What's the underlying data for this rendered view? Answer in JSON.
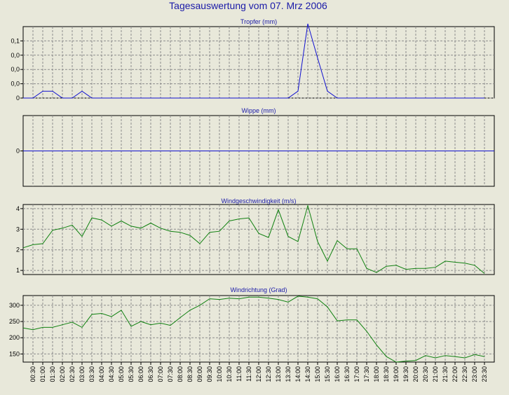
{
  "title": "Tagesauswertung vom 07. Mrz 2006",
  "colors": {
    "background": "#e8e8da",
    "title": "#1a1aa8",
    "rain": "#1010d0",
    "wind": "#108010",
    "grid": "#8c8c8c"
  },
  "x_ticks": [
    "00:30",
    "01:00",
    "01:30",
    "02:00",
    "02:30",
    "03:00",
    "03:30",
    "04:00",
    "04:30",
    "05:00",
    "05:30",
    "06:00",
    "06:30",
    "07:00",
    "07:30",
    "08:00",
    "08:30",
    "09:00",
    "09:30",
    "10:00",
    "10:30",
    "11:00",
    "11:30",
    "12:00",
    "12:30",
    "13:00",
    "13:30",
    "14:00",
    "14:30",
    "15:00",
    "15:30",
    "16:00",
    "16:30",
    "17:00",
    "17:30",
    "18:00",
    "18:30",
    "19:00",
    "19:30",
    "20:00",
    "20:30",
    "21:00",
    "21:30",
    "22:00",
    "22:30",
    "23:00",
    "23:30"
  ],
  "chart_data": [
    {
      "type": "line",
      "title": "Tropfer (mm)",
      "color": "#1010d0",
      "ylim": [
        0,
        0.125
      ],
      "ytick_values": [
        0,
        0.025,
        0.05,
        0.075,
        0.1
      ],
      "ytick_labels": [
        "0",
        "0,0",
        "0,0",
        "0,0",
        "0,1"
      ],
      "x": [
        0,
        0.5,
        1,
        1.5,
        2,
        2.5,
        3,
        3.5,
        4,
        4.5,
        5,
        5.5,
        6,
        6.5,
        7,
        7.5,
        8,
        8.5,
        9,
        9.5,
        10,
        10.5,
        11,
        11.5,
        12,
        12.5,
        13,
        13.5,
        14,
        14.5,
        15,
        15.5,
        16,
        16.5,
        17,
        17.5,
        18,
        18.5,
        19,
        19.5,
        20,
        20.5,
        21,
        21.5,
        22,
        22.5,
        23,
        23.5
      ],
      "y": [
        0,
        0,
        0.012,
        0.012,
        0,
        0,
        0.012,
        0,
        0,
        0,
        0,
        0,
        0,
        0,
        0,
        0,
        0,
        0,
        0,
        0,
        0,
        0,
        0,
        0,
        0,
        0,
        0,
        0,
        0.012,
        0.13,
        0.07,
        0.012,
        0,
        0,
        0,
        0,
        0,
        0,
        0,
        0,
        0,
        0,
        0,
        0,
        0,
        0,
        0,
        0
      ]
    },
    {
      "type": "line",
      "title": "Wippe (mm)",
      "color": "#1010d0",
      "ylim": [
        -1,
        1
      ],
      "ytick_values": [
        0
      ],
      "ytick_labels": [
        "0"
      ],
      "x": [
        0,
        24
      ],
      "y": [
        0,
        0
      ]
    },
    {
      "type": "line",
      "title": "Windgeschwindigkeit (m/s)",
      "color": "#108010",
      "ylim": [
        0.8,
        4.2
      ],
      "ytick_values": [
        1,
        2,
        3,
        4
      ],
      "ytick_labels": [
        "1",
        "2",
        "3",
        "4"
      ],
      "x": [
        0,
        0.5,
        1,
        1.5,
        2,
        2.5,
        3,
        3.5,
        4,
        4.5,
        5,
        5.5,
        6,
        6.5,
        7,
        7.5,
        8,
        8.5,
        9,
        9.5,
        10,
        10.5,
        11,
        11.5,
        12,
        12.5,
        13,
        13.5,
        14,
        14.5,
        15,
        15.5,
        16,
        16.5,
        17,
        17.5,
        18,
        18.5,
        19,
        19.5,
        20,
        20.5,
        21,
        21.5,
        22,
        22.5,
        23,
        23.5
      ],
      "y": [
        2.1,
        2.25,
        2.3,
        2.95,
        3.05,
        3.2,
        2.65,
        3.55,
        3.45,
        3.15,
        3.4,
        3.15,
        3.05,
        3.3,
        3.05,
        2.9,
        2.85,
        2.7,
        2.3,
        2.85,
        2.9,
        3.4,
        3.5,
        3.55,
        2.8,
        2.6,
        3.95,
        2.65,
        2.4,
        4.15,
        2.4,
        1.45,
        2.45,
        2.05,
        2.05,
        1.1,
        0.9,
        1.2,
        1.25,
        1.05,
        1.1,
        1.1,
        1.15,
        1.45,
        1.4,
        1.35,
        1.25,
        0.85
      ]
    },
    {
      "type": "line",
      "title": "Windrichtung (Grad)",
      "color": "#108010",
      "ylim": [
        125,
        330
      ],
      "ytick_values": [
        150,
        200,
        250,
        300
      ],
      "ytick_labels": [
        "150",
        "200",
        "250",
        "300"
      ],
      "x": [
        0,
        0.5,
        1,
        1.5,
        2,
        2.5,
        3,
        3.5,
        4,
        4.5,
        5,
        5.5,
        6,
        6.5,
        7,
        7.5,
        8,
        8.5,
        9,
        9.5,
        10,
        10.5,
        11,
        11.5,
        12,
        12.5,
        13,
        13.5,
        14,
        14.5,
        15,
        15.5,
        16,
        16.5,
        17,
        17.5,
        18,
        18.5,
        19,
        19.5,
        20,
        20.5,
        21,
        21.5,
        22,
        22.5,
        23,
        23.5
      ],
      "y": [
        230,
        225,
        232,
        232,
        240,
        248,
        232,
        272,
        275,
        265,
        285,
        235,
        250,
        240,
        245,
        238,
        262,
        285,
        300,
        320,
        318,
        322,
        320,
        325,
        325,
        322,
        318,
        310,
        328,
        325,
        320,
        295,
        252,
        255,
        255,
        220,
        178,
        142,
        125,
        128,
        130,
        145,
        138,
        145,
        142,
        138,
        148,
        142
      ]
    }
  ]
}
